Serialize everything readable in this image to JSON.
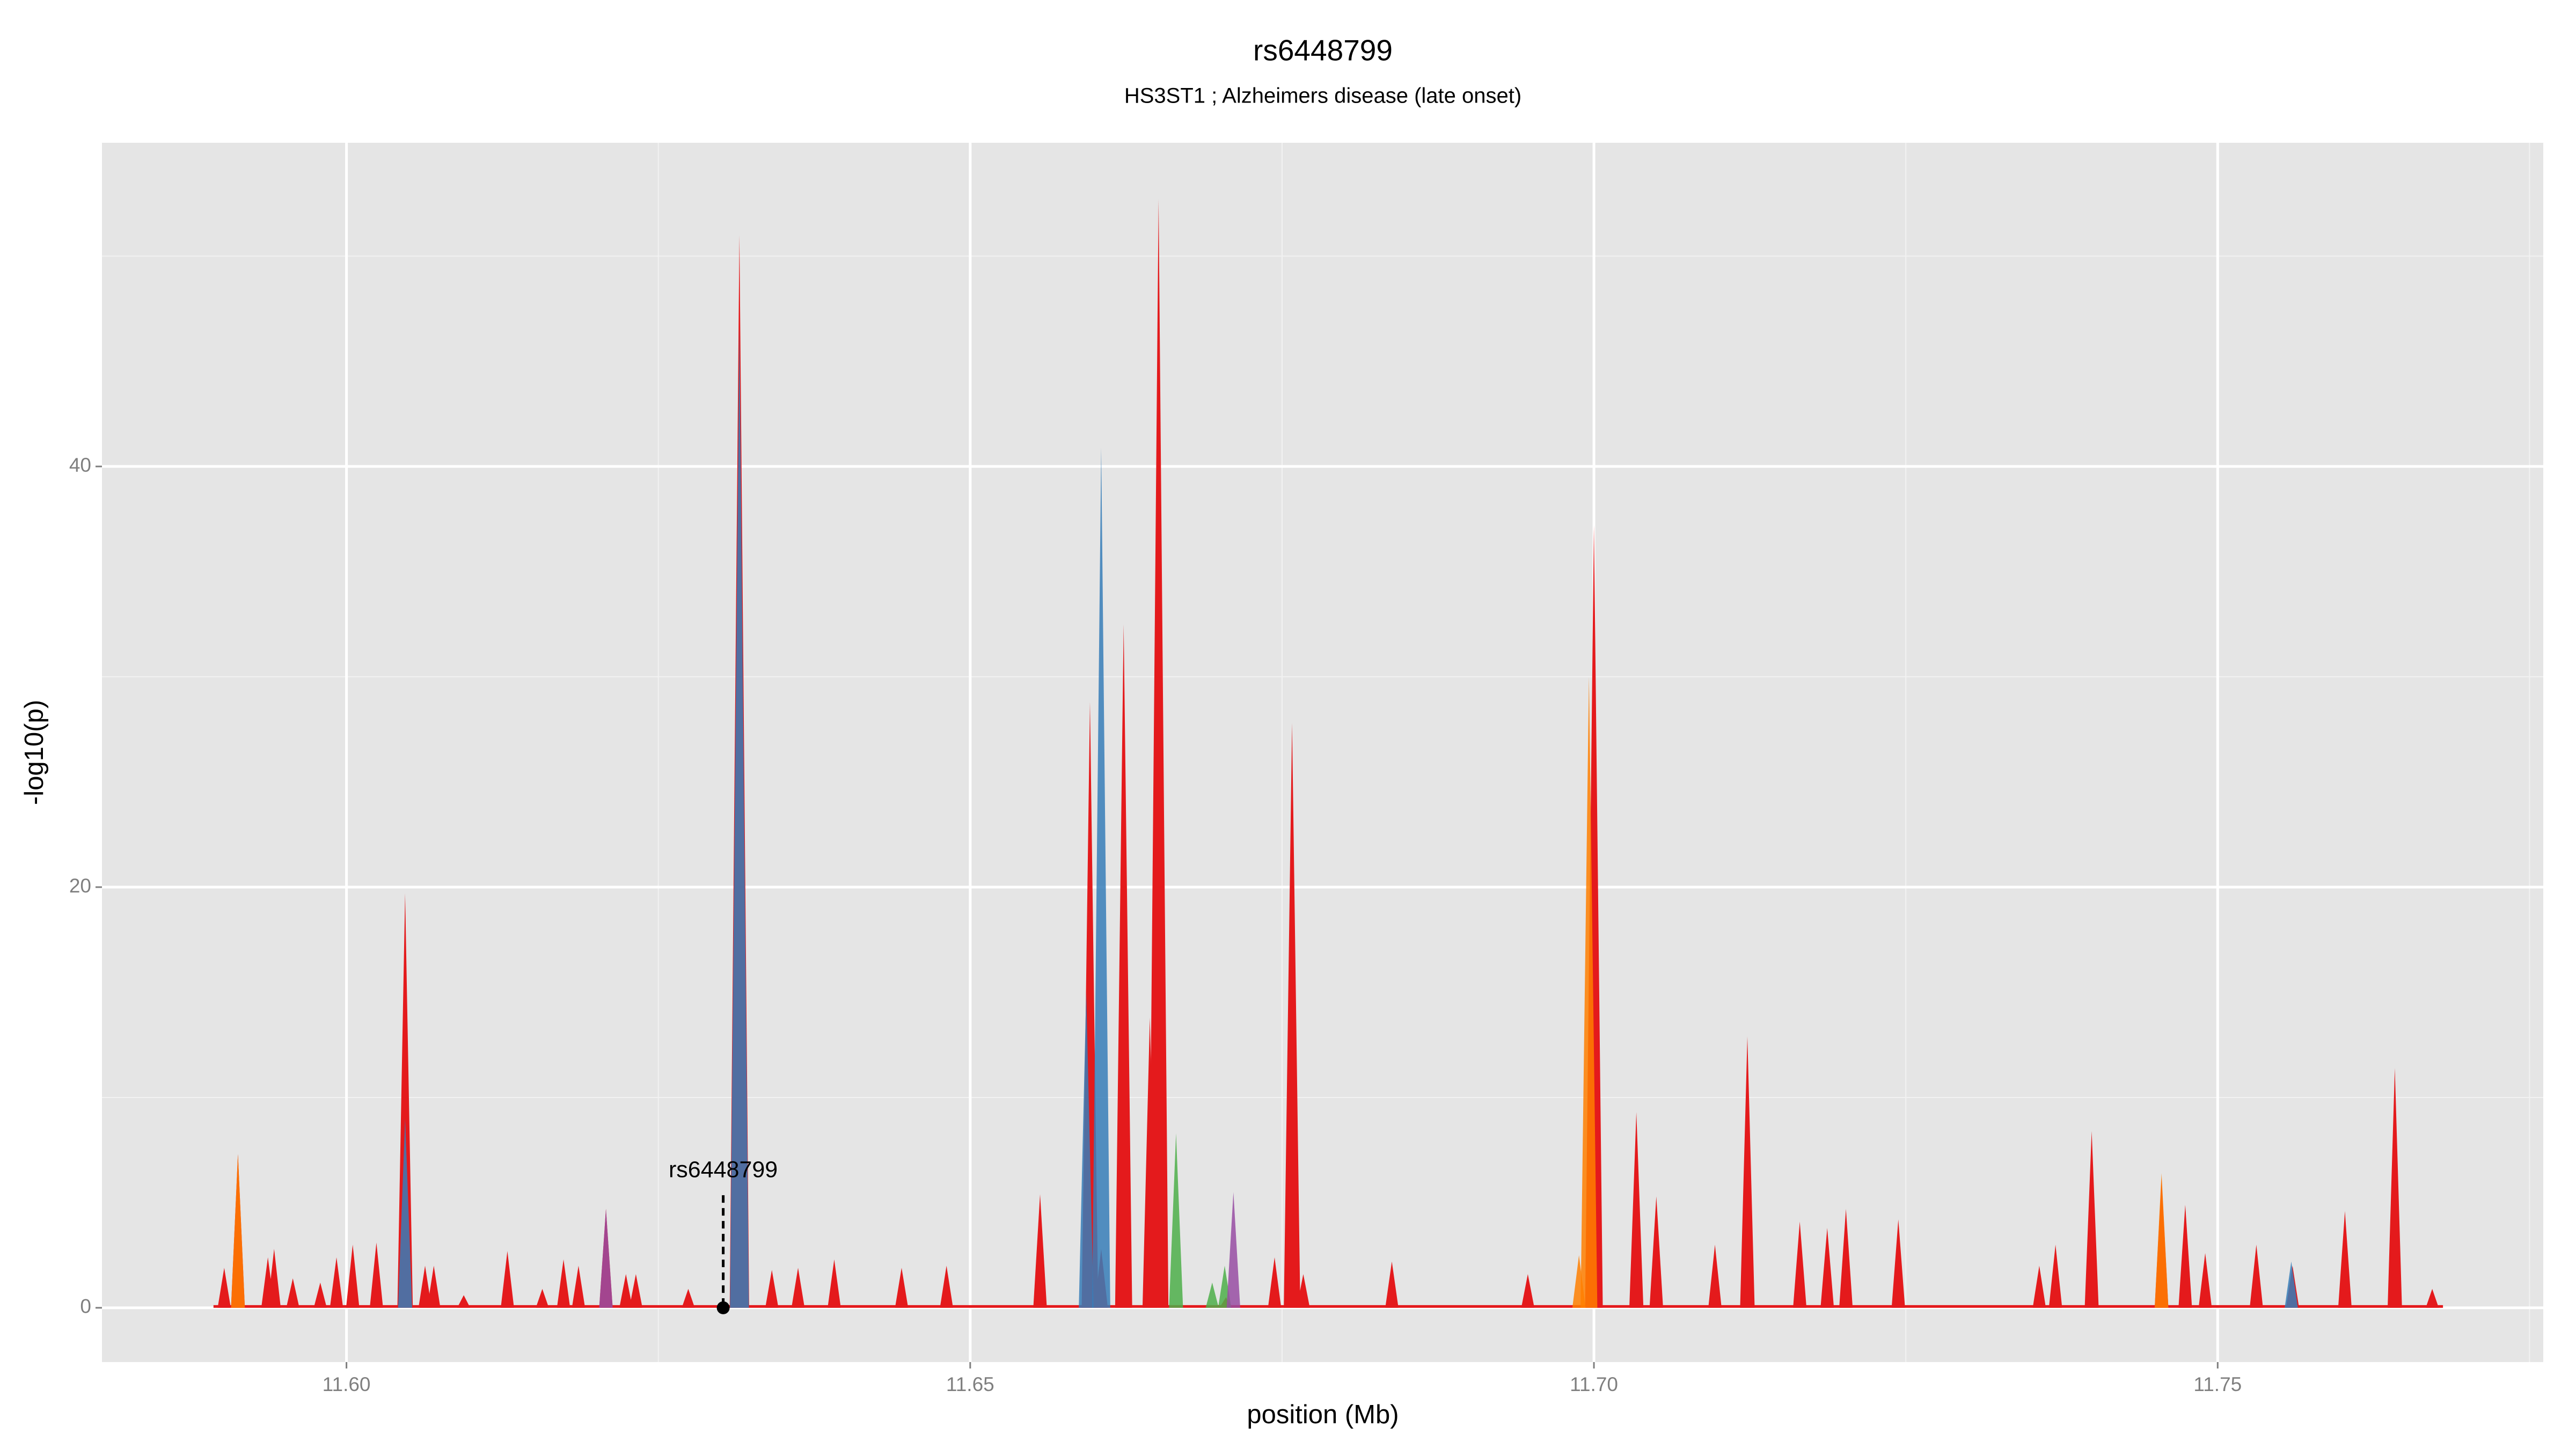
{
  "chart_data": {
    "type": "area",
    "title": "rs6448799",
    "subtitle": "HS3ST1 ; Alzheimers disease (late onset)",
    "xlabel": "position (Mb)",
    "ylabel": "-log10(p)",
    "xlim": [
      11.5804,
      11.7761
    ],
    "ylim": [
      -2.58,
      55.39
    ],
    "xticks": [
      {
        "value": 11.6,
        "label": "11.60"
      },
      11.65,
      {
        "value": 11.7,
        "label": "11.70"
      },
      11.75
    ],
    "xminor": [
      11.625,
      11.675,
      11.725,
      11.775
    ],
    "yticks": [
      0,
      20,
      40
    ],
    "yminor": [
      10,
      30,
      50
    ],
    "grid": true,
    "annotation": {
      "text": "rs6448799",
      "x": 11.6302,
      "y": 0,
      "label_y": 6.5
    },
    "series": [
      {
        "color": "#e41a1c",
        "x": [
          11.5902,
          11.5913,
          11.5937,
          11.5942,
          11.5957,
          11.5979,
          11.5992,
          11.6005,
          11.6024,
          11.6047,
          11.6063,
          11.607,
          11.6094,
          11.6129,
          11.6157,
          11.6174,
          11.6186,
          11.6208,
          11.6224,
          11.6232,
          11.6274,
          11.6315,
          11.6341,
          11.6362,
          11.6391,
          11.6445,
          11.6481,
          11.6556,
          11.6596,
          11.6605,
          11.6623,
          11.6644,
          11.6651,
          11.6705,
          11.6744,
          11.6758,
          11.6767,
          11.6838,
          11.6947,
          11.7,
          11.7034,
          11.705,
          11.7097,
          11.7123,
          11.7165,
          11.7187,
          11.7202,
          11.7244,
          11.7357,
          11.737,
          11.7399,
          11.7455,
          11.7474,
          11.749,
          11.7531,
          11.756,
          11.7602,
          11.7642,
          11.7672
        ],
        "values": [
          1.9,
          7.3,
          2.4,
          2.8,
          1.4,
          1.2,
          2.4,
          3.0,
          3.1,
          19.7,
          2.0,
          2.0,
          0.6,
          2.7,
          0.9,
          2.3,
          2.0,
          4.7,
          1.6,
          1.6,
          0.9,
          51,
          1.8,
          1.9,
          2.3,
          1.9,
          2.0,
          5.4,
          28.8,
          2.8,
          32.5,
          13.8,
          52.7,
          0.5,
          2.4,
          27.8,
          1.6,
          2.2,
          1.6,
          37.2,
          9.3,
          5.3,
          3.0,
          12.9,
          4.1,
          3.8,
          4.7,
          4.2,
          2.0,
          3.0,
          8.4,
          6.2,
          4.9,
          2.6,
          3.0,
          2.0,
          4.6,
          11.4,
          0.9
        ]
      },
      {
        "color": "#377eb8",
        "x": [
          11.6047,
          11.6315,
          11.6593,
          11.6605,
          11.7559
        ],
        "values": [
          9.0,
          46.6,
          15,
          40.9,
          2.2
        ]
      },
      {
        "color": "#4daf4a",
        "x": [
          11.6665,
          11.6694,
          11.6704
        ],
        "values": [
          8.3,
          1.2,
          2.0
        ]
      },
      {
        "color": "#984ea3",
        "x": [
          11.6208,
          11.6711
        ],
        "values": [
          4.7,
          5.5
        ]
      },
      {
        "color": "#ff7f00",
        "x": [
          11.5913,
          11.6988,
          11.6996,
          11.7455
        ],
        "values": [
          7.3,
          2.5,
          30,
          6.4
        ]
      }
    ]
  }
}
